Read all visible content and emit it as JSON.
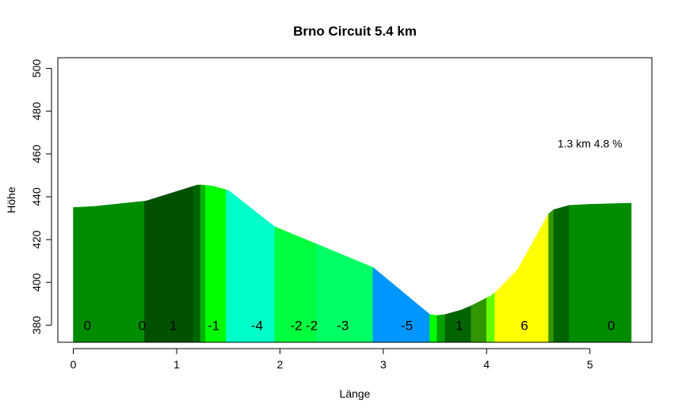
{
  "chart_data": {
    "type": "area",
    "title": "Brno Circuit 5.4 km",
    "xlabel": "Länge",
    "ylabel": "Höhe",
    "xlim": [
      -0.15,
      5.6
    ],
    "ylim": [
      372,
      505
    ],
    "base": 372,
    "xticks": [
      "0",
      "1",
      "2",
      "3",
      "4",
      "5"
    ],
    "yticks": [
      "380",
      "400",
      "420",
      "440",
      "460",
      "480",
      "500"
    ],
    "annotation": "1.3 km 4.8 %",
    "profile": [
      [
        0,
        435
      ],
      [
        0.2,
        435.5
      ],
      [
        0.5,
        437
      ],
      [
        0.7,
        438
      ],
      [
        0.9,
        441
      ],
      [
        1.2,
        445.5
      ],
      [
        1.25,
        445.5
      ],
      [
        1.35,
        445
      ],
      [
        1.5,
        443
      ],
      [
        1.95,
        426
      ],
      [
        2.35,
        418
      ],
      [
        2.9,
        407
      ],
      [
        3.45,
        385
      ],
      [
        3.52,
        384.5
      ],
      [
        3.6,
        385
      ],
      [
        3.75,
        387
      ],
      [
        3.85,
        389
      ],
      [
        4.05,
        394
      ],
      [
        4.1,
        396
      ],
      [
        4.3,
        406
      ],
      [
        4.6,
        432
      ],
      [
        4.65,
        434
      ],
      [
        4.8,
        436
      ],
      [
        5.0,
        436.5
      ],
      [
        5.4,
        437
      ]
    ],
    "segments": [
      {
        "x0": 0.0,
        "x1": 0.69,
        "color": "#008C00",
        "label": "0",
        "lx": 0.1
      },
      {
        "x0": 0.69,
        "x1": 1.16,
        "color": "#005000",
        "label": "0",
        "lx": 0.63
      },
      {
        "x0": 1.16,
        "x1": 1.23,
        "color": "#006400",
        "label": "1",
        "lx": 0.93
      },
      {
        "x0": 1.23,
        "x1": 1.28,
        "color": "#00B400",
        "label": "",
        "lx": 0
      },
      {
        "x0": 1.28,
        "x1": 1.48,
        "color": "#00FF00",
        "label": "-1",
        "lx": 1.3
      },
      {
        "x0": 1.48,
        "x1": 1.95,
        "color": "#00FFC8",
        "label": "-4",
        "lx": 1.72
      },
      {
        "x0": 1.95,
        "x1": 2.35,
        "color": "#00FF3C",
        "label": "-2",
        "lx": 2.1
      },
      {
        "x0": 2.35,
        "x1": 2.9,
        "color": "#00FF64",
        "label": "-2",
        "lx": 2.25
      },
      {
        "x0": 2.9,
        "x1": 3.45,
        "color": "#0096FF",
        "label": "-3",
        "lx": 2.55
      },
      {
        "x0": 3.45,
        "x1": 3.52,
        "color": "#00FF00",
        "label": "-5",
        "lx": 3.17
      },
      {
        "x0": 3.52,
        "x1": 3.6,
        "color": "#00A000",
        "label": "",
        "lx": 0
      },
      {
        "x0": 3.6,
        "x1": 3.85,
        "color": "#006400",
        "label": "1",
        "lx": 3.7
      },
      {
        "x0": 3.85,
        "x1": 4.0,
        "color": "#329600",
        "label": "",
        "lx": 0
      },
      {
        "x0": 4.0,
        "x1": 4.08,
        "color": "#64FF00",
        "label": "",
        "lx": 0
      },
      {
        "x0": 4.08,
        "x1": 4.6,
        "color": "#FFFF00",
        "label": "6",
        "lx": 4.33
      },
      {
        "x0": 4.6,
        "x1": 4.65,
        "color": "#329600",
        "label": "",
        "lx": 0
      },
      {
        "x0": 4.65,
        "x1": 4.8,
        "color": "#006400",
        "label": "",
        "lx": 0
      },
      {
        "x0": 4.8,
        "x1": 5.4,
        "color": "#008C00",
        "label": "0",
        "lx": 5.17
      }
    ]
  }
}
